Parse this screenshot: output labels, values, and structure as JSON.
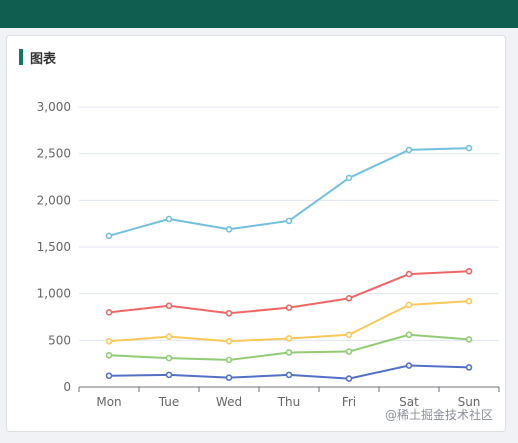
{
  "card": {
    "title": "图表"
  },
  "watermark": "@稀土掘金技术社区",
  "chart_data": {
    "type": "line",
    "categories": [
      "Mon",
      "Tue",
      "Wed",
      "Thu",
      "Fri",
      "Sat",
      "Sun"
    ],
    "ylim": [
      0,
      3000
    ],
    "yticks": [
      "0",
      "500",
      "1,000",
      "1,500",
      "2,000",
      "2,500",
      "3,000"
    ],
    "ytick_values": [
      0,
      500,
      1000,
      1500,
      2000,
      2500,
      3000
    ],
    "grid": true,
    "series": [
      {
        "color": "#73c0de",
        "values": [
          1620,
          1800,
          1690,
          1780,
          2240,
          2540,
          2560
        ]
      },
      {
        "color": "#ee6666",
        "values": [
          800,
          870,
          790,
          850,
          950,
          1210,
          1240
        ]
      },
      {
        "color": "#fac858",
        "values": [
          490,
          540,
          490,
          520,
          560,
          880,
          920
        ]
      },
      {
        "color": "#91cc75",
        "values": [
          340,
          310,
          290,
          370,
          380,
          560,
          510
        ]
      },
      {
        "color": "#5470c6",
        "values": [
          120,
          130,
          100,
          130,
          90,
          230,
          210
        ]
      }
    ]
  }
}
